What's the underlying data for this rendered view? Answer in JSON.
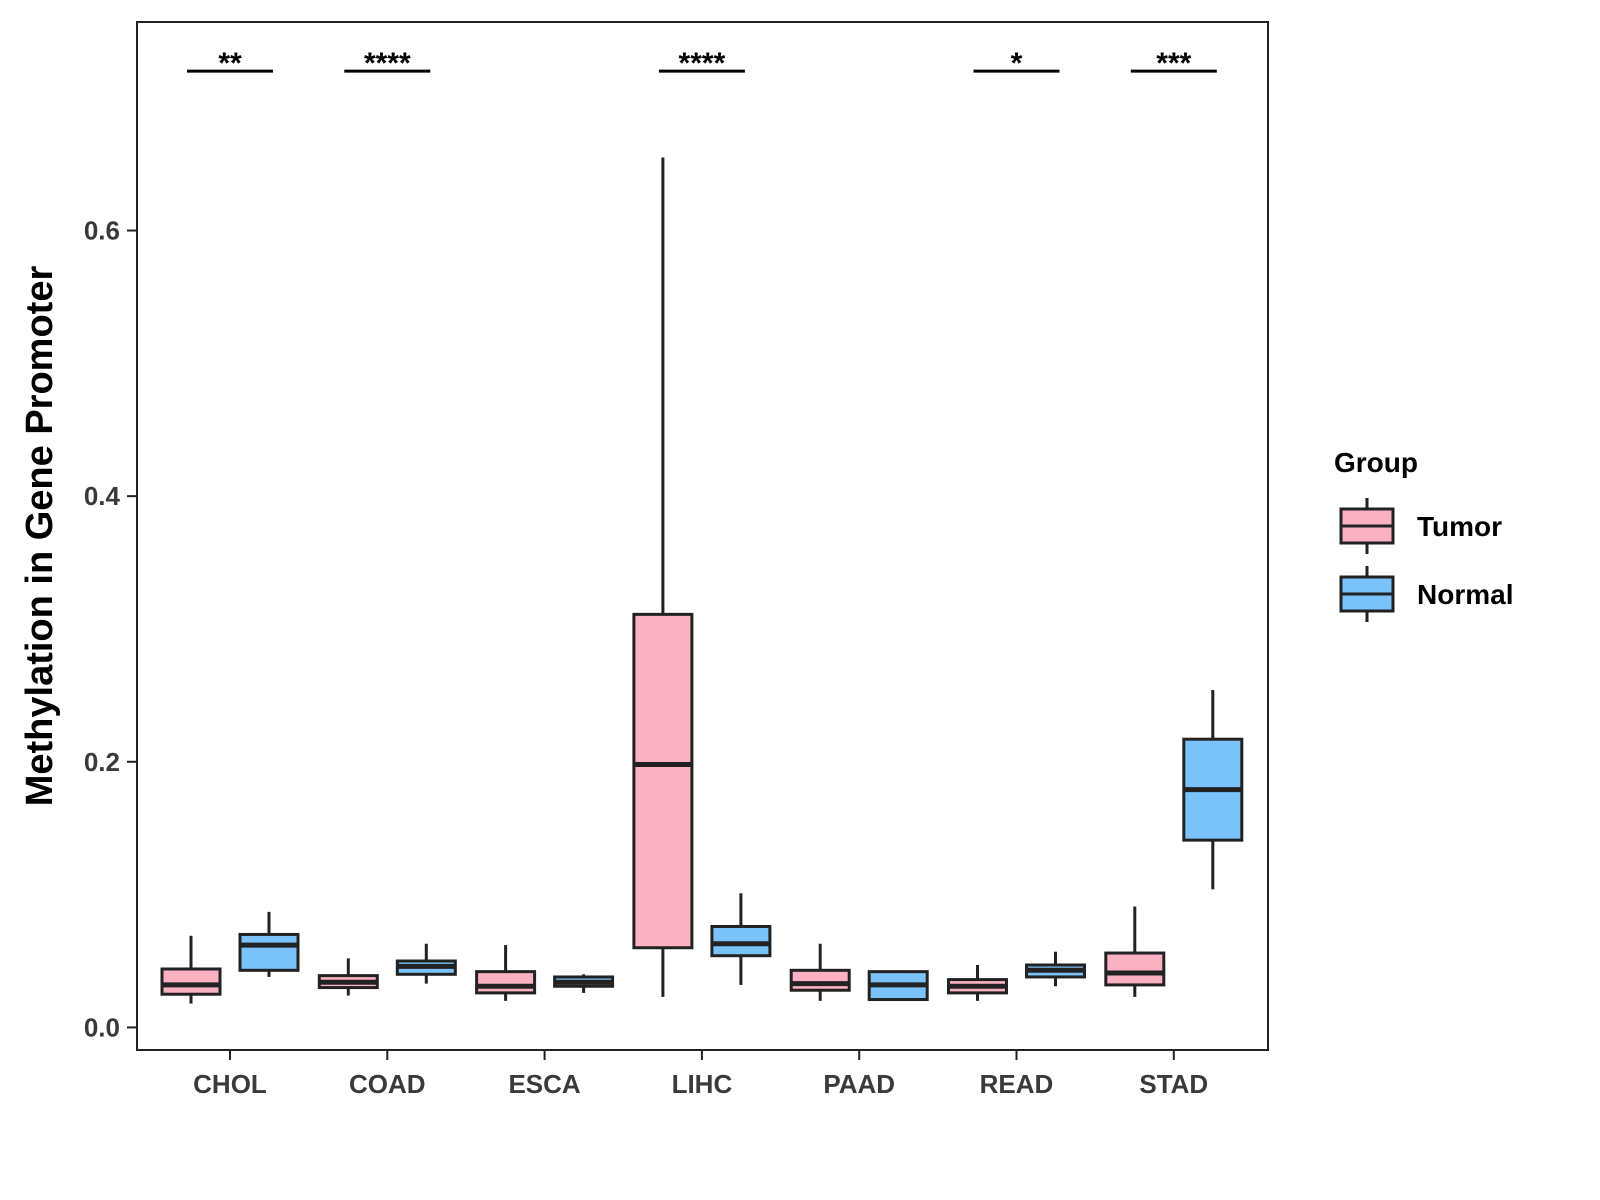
{
  "chart_data": {
    "type": "boxplot",
    "title": "",
    "xlabel": "",
    "ylabel": "Methylation in Gene Promoter",
    "ylim": [
      -0.017,
      0.757
    ],
    "yticks": [
      0.0,
      0.2,
      0.4,
      0.6
    ],
    "ytick_labels": [
      "0.0",
      "0.2",
      "0.4",
      "0.6"
    ],
    "grid": false,
    "categories": [
      "CHOL",
      "COAD",
      "ESCA",
      "LIHC",
      "PAAD",
      "READ",
      "STAD"
    ],
    "legend": {
      "title": "Group",
      "position": "right",
      "entries": [
        {
          "name": "Tumor",
          "color": "#FBB1C2"
        },
        {
          "name": "Normal",
          "color": "#79C3FA"
        }
      ]
    },
    "series": [
      {
        "name": "Tumor",
        "color": "#FBB1C2",
        "boxes": [
          {
            "min": 0.018,
            "q1": 0.025,
            "median": 0.032,
            "q3": 0.044,
            "max": 0.069
          },
          {
            "min": 0.024,
            "q1": 0.03,
            "median": 0.034,
            "q3": 0.039,
            "max": 0.052
          },
          {
            "min": 0.02,
            "q1": 0.026,
            "median": 0.031,
            "q3": 0.042,
            "max": 0.062
          },
          {
            "min": 0.023,
            "q1": 0.06,
            "median": 0.198,
            "q3": 0.311,
            "max": 0.655
          },
          {
            "min": 0.02,
            "q1": 0.028,
            "median": 0.033,
            "q3": 0.043,
            "max": 0.063
          },
          {
            "min": 0.02,
            "q1": 0.026,
            "median": 0.031,
            "q3": 0.036,
            "max": 0.047
          },
          {
            "min": 0.023,
            "q1": 0.032,
            "median": 0.041,
            "q3": 0.056,
            "max": 0.091
          }
        ]
      },
      {
        "name": "Normal",
        "color": "#79C3FA",
        "boxes": [
          {
            "min": 0.038,
            "q1": 0.043,
            "median": 0.062,
            "q3": 0.07,
            "max": 0.087
          },
          {
            "min": 0.033,
            "q1": 0.04,
            "median": 0.046,
            "q3": 0.05,
            "max": 0.063
          },
          {
            "min": 0.026,
            "q1": 0.031,
            "median": 0.034,
            "q3": 0.038,
            "max": 0.04
          },
          {
            "min": 0.032,
            "q1": 0.054,
            "median": 0.063,
            "q3": 0.076,
            "max": 0.101
          },
          {
            "min": 0.021,
            "q1": 0.021,
            "median": 0.032,
            "q3": 0.042,
            "max": 0.043
          },
          {
            "min": 0.031,
            "q1": 0.038,
            "median": 0.043,
            "q3": 0.047,
            "max": 0.057
          },
          {
            "min": 0.104,
            "q1": 0.141,
            "median": 0.179,
            "q3": 0.217,
            "max": 0.254
          }
        ]
      }
    ],
    "significance": [
      {
        "category": "CHOL",
        "label": "**"
      },
      {
        "category": "COAD",
        "label": "****"
      },
      {
        "category": "LIHC",
        "label": "****"
      },
      {
        "category": "READ",
        "label": "*"
      },
      {
        "category": "STAD",
        "label": "***"
      }
    ],
    "significance_y": 0.72
  }
}
